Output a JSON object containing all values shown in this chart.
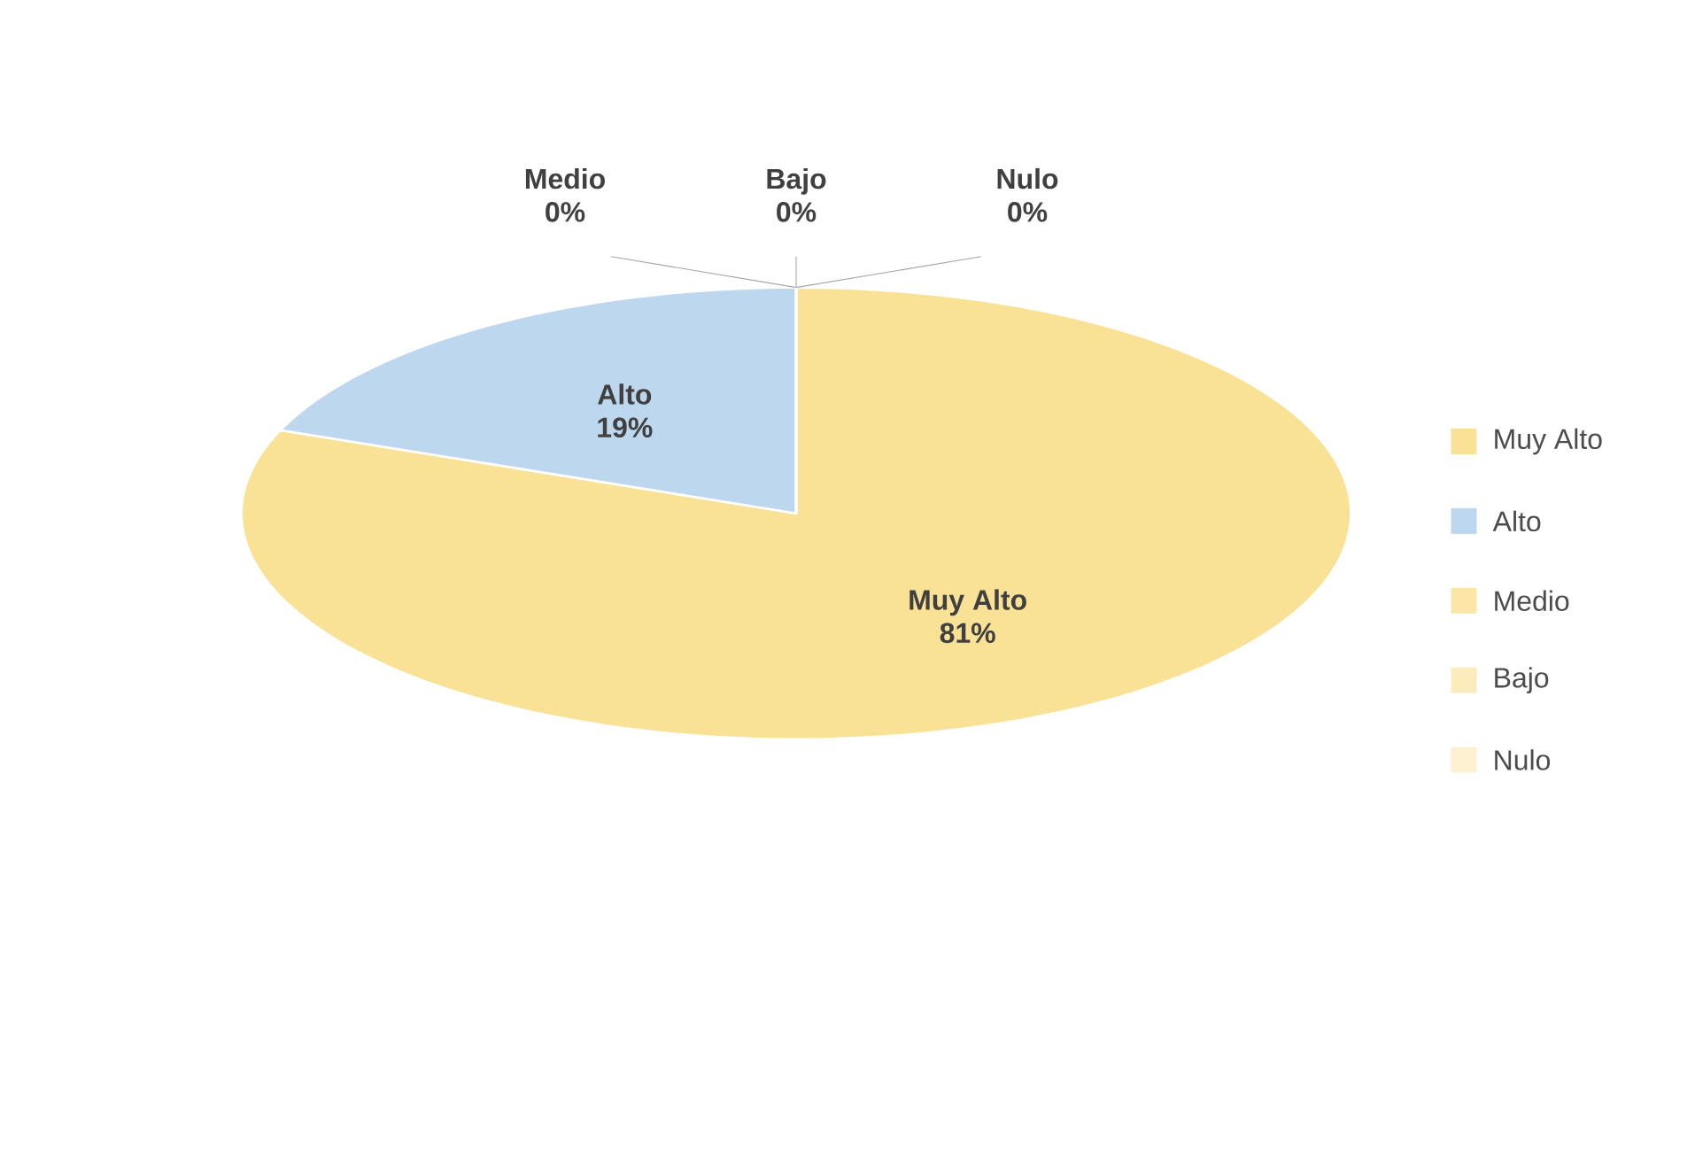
{
  "chart_data": {
    "type": "pie",
    "categories": [
      "Muy Alto",
      "Alto",
      "Medio",
      "Bajo",
      "Nulo"
    ],
    "values": [
      81,
      19,
      0,
      0,
      0
    ],
    "value_labels": [
      "81%",
      "19%",
      "0%",
      "0%",
      "0%"
    ],
    "colors": [
      "#f9e196",
      "#bdd7ee",
      "#fbe6a8",
      "#fcecbd",
      "#fdf1d2"
    ],
    "legend": "right"
  }
}
